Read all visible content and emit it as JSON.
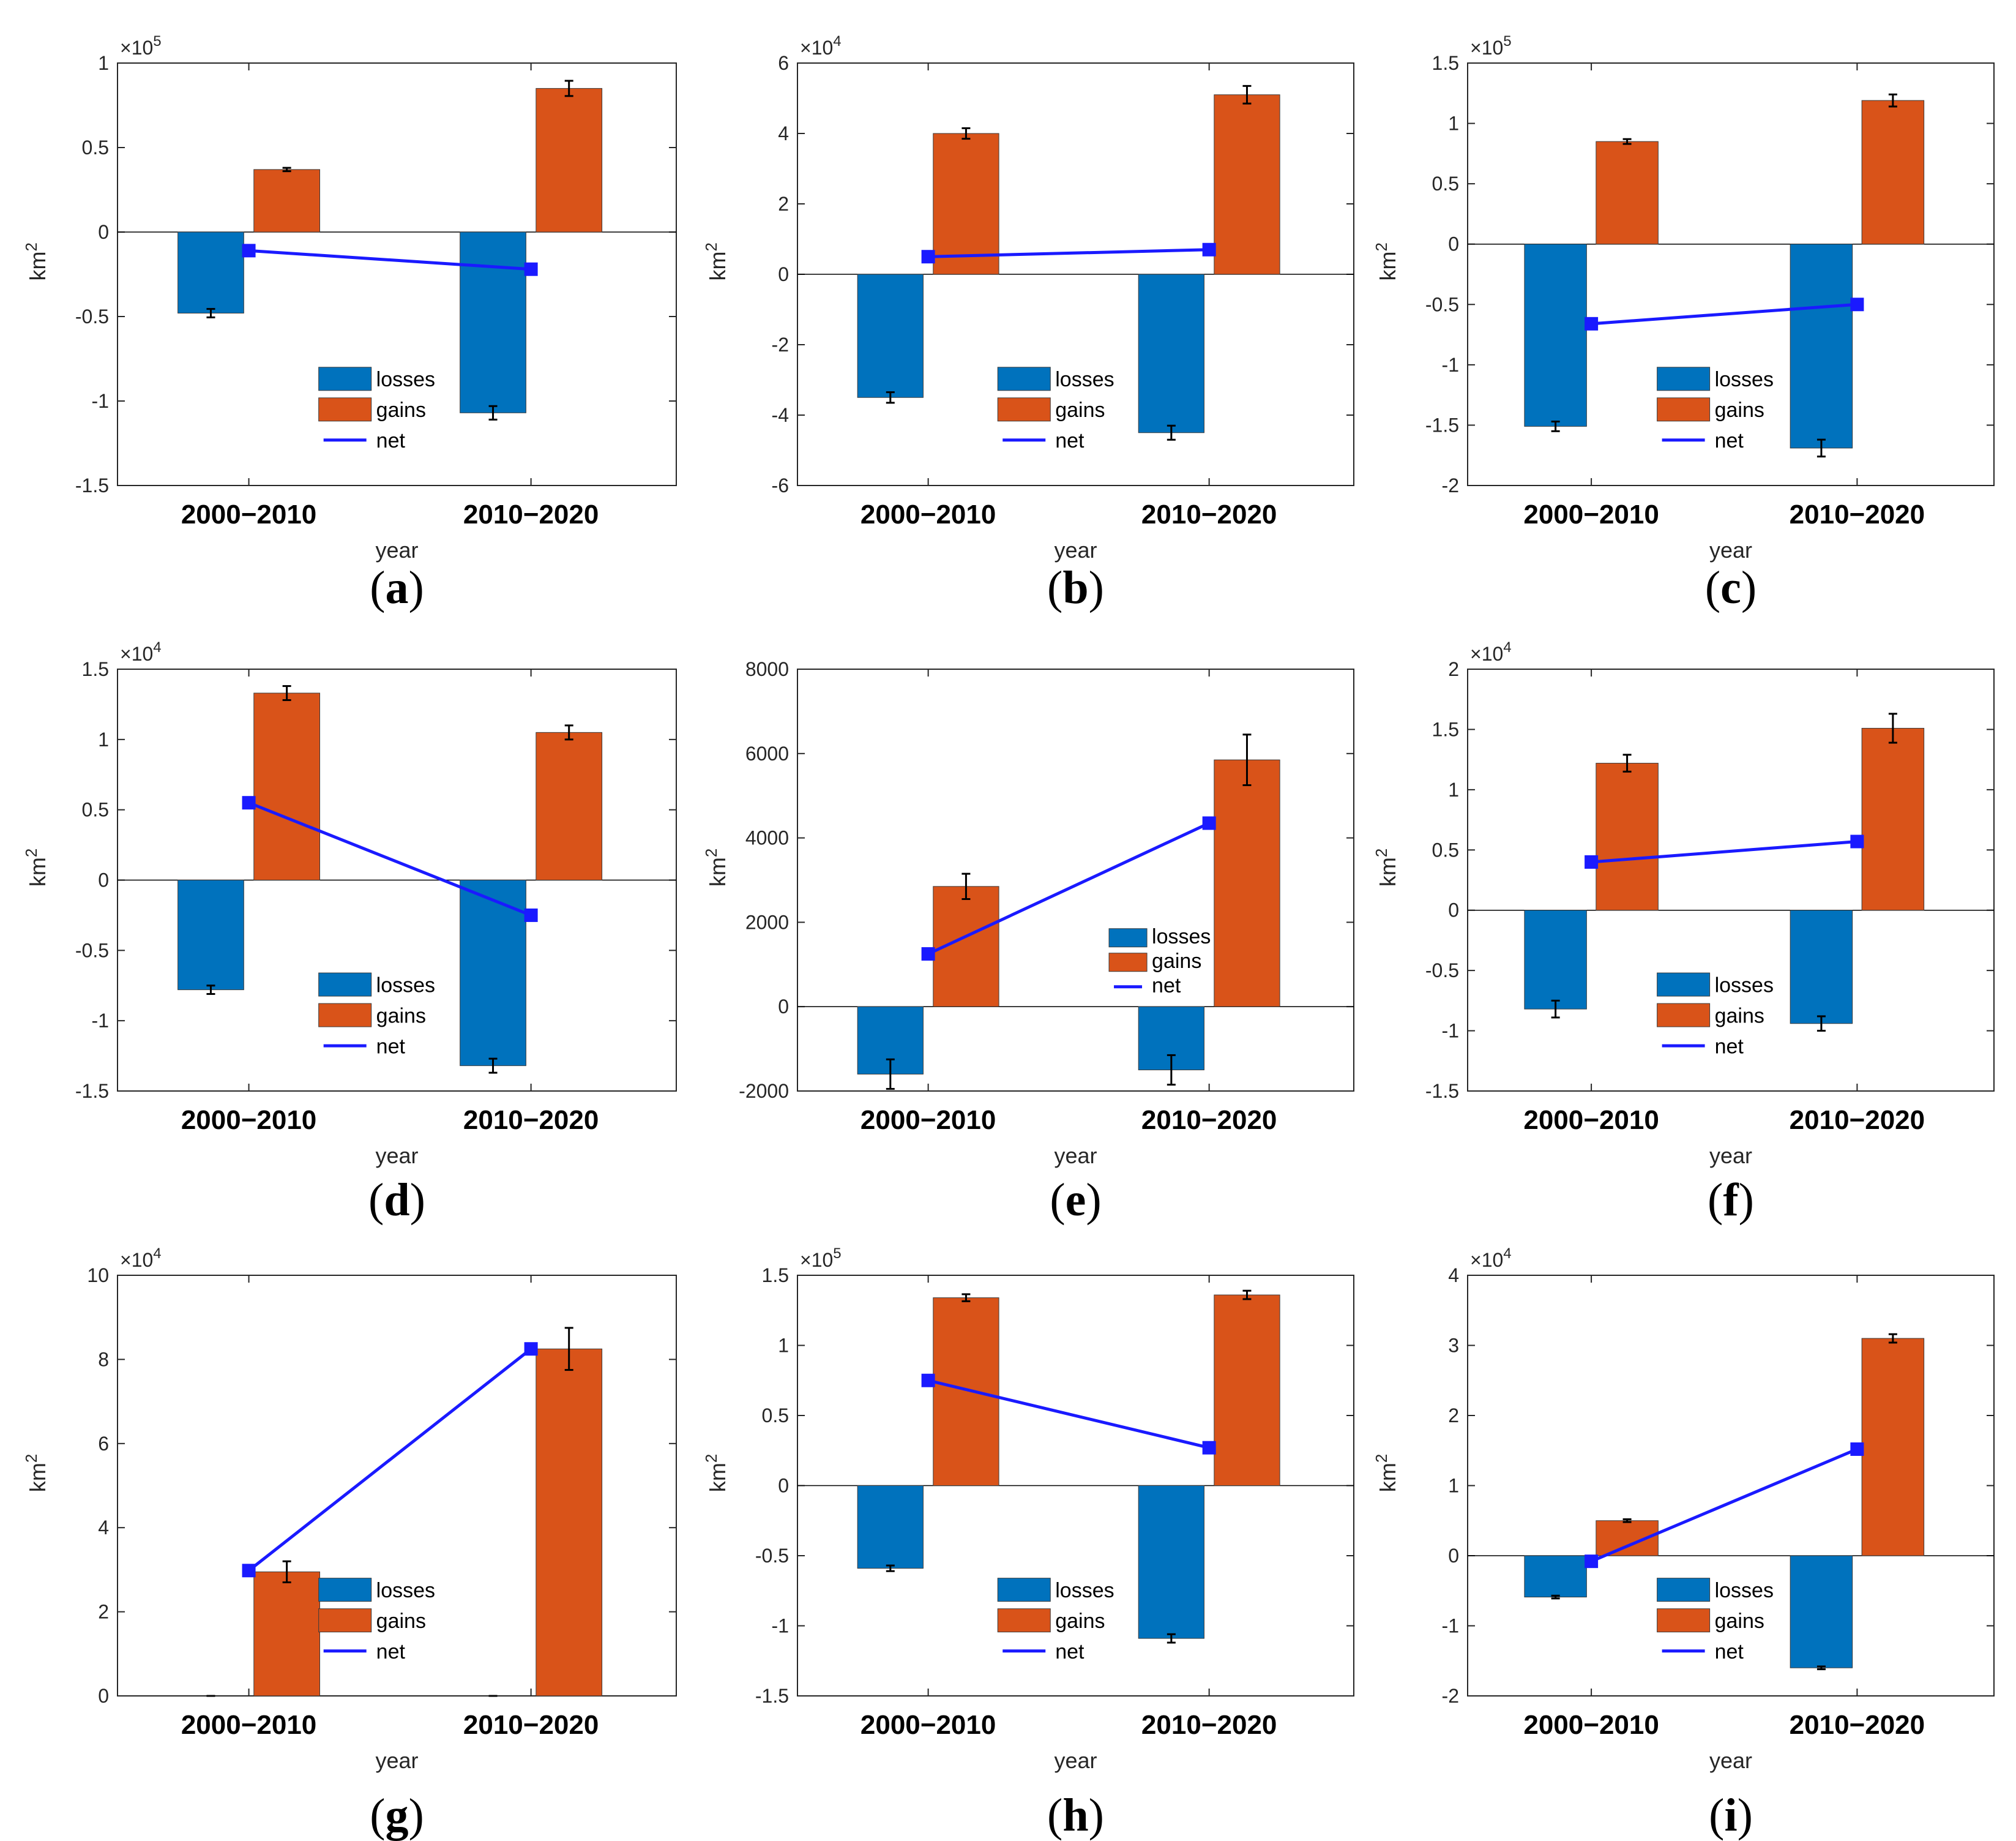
{
  "figure": {
    "xlabel": "year",
    "ylabel_base": "km",
    "ylabel_sup": "2"
  },
  "colors": {
    "losses": "#0072BD",
    "gains": "#D95319",
    "net": "#1a1aff",
    "axis": "#262626"
  },
  "chart_data": [
    {
      "type": "bar",
      "panel": "a",
      "title": "",
      "categories": [
        "2000−2010",
        "2010−2020"
      ],
      "xlabel": "year",
      "ylabel": "km2",
      "multiplier": "10",
      "multiplier_exp": "5",
      "scale": 100000,
      "ylim": [
        -150000,
        100000
      ],
      "yticks": [
        -150000,
        -100000,
        -50000,
        0,
        50000,
        100000
      ],
      "ytick_labels": [
        "-1.5",
        "-1",
        "-0.5",
        "0",
        "0.5",
        "1"
      ],
      "legend_position": "lower-middle",
      "series": [
        {
          "name": "losses",
          "type": "bar",
          "values": [
            -48000,
            -107000
          ],
          "errors": [
            2500,
            4000
          ]
        },
        {
          "name": "gains",
          "type": "bar",
          "values": [
            37000,
            85000
          ],
          "errors": [
            1000,
            4500
          ]
        },
        {
          "name": "net",
          "type": "line",
          "values": [
            -11000,
            -22000
          ]
        }
      ]
    },
    {
      "type": "bar",
      "panel": "b",
      "title": "",
      "categories": [
        "2000−2010",
        "2010−2020"
      ],
      "xlabel": "year",
      "ylabel": "km2",
      "multiplier": "10",
      "multiplier_exp": "4",
      "scale": 10000,
      "ylim": [
        -60000,
        60000
      ],
      "yticks": [
        -60000,
        -40000,
        -20000,
        0,
        20000,
        40000,
        60000
      ],
      "ytick_labels": [
        "-6",
        "-4",
        "-2",
        "0",
        "2",
        "4",
        "6"
      ],
      "legend_position": "lower-middle",
      "series": [
        {
          "name": "losses",
          "type": "bar",
          "values": [
            -35000,
            -45000
          ],
          "errors": [
            1500,
            2000
          ]
        },
        {
          "name": "gains",
          "type": "bar",
          "values": [
            40000,
            51000
          ],
          "errors": [
            1500,
            2500
          ]
        },
        {
          "name": "net",
          "type": "line",
          "values": [
            5000,
            7000
          ]
        }
      ]
    },
    {
      "type": "bar",
      "panel": "c",
      "title": "",
      "categories": [
        "2000−2010",
        "2010−2020"
      ],
      "xlabel": "year",
      "ylabel": "km2",
      "multiplier": "10",
      "multiplier_exp": "5",
      "scale": 100000,
      "ylim": [
        -200000,
        150000
      ],
      "yticks": [
        -200000,
        -150000,
        -100000,
        -50000,
        0,
        50000,
        100000,
        150000
      ],
      "ytick_labels": [
        "-2",
        "-1.5",
        "-1",
        "-0.5",
        "0",
        "0.5",
        "1",
        "1.5"
      ],
      "legend_position": "lower-middle",
      "series": [
        {
          "name": "losses",
          "type": "bar",
          "values": [
            -151000,
            -169000
          ],
          "errors": [
            4000,
            7000
          ]
        },
        {
          "name": "gains",
          "type": "bar",
          "values": [
            85000,
            119000
          ],
          "errors": [
            2000,
            5000
          ]
        },
        {
          "name": "net",
          "type": "line",
          "values": [
            -66000,
            -50000
          ]
        }
      ]
    },
    {
      "type": "bar",
      "panel": "d",
      "title": "",
      "categories": [
        "2000−2010",
        "2010−2020"
      ],
      "xlabel": "year",
      "ylabel": "km2",
      "multiplier": "10",
      "multiplier_exp": "4",
      "scale": 10000,
      "ylim": [
        -15000,
        15000
      ],
      "yticks": [
        -15000,
        -10000,
        -5000,
        0,
        5000,
        10000,
        15000
      ],
      "ytick_labels": [
        "-1.5",
        "-1",
        "-0.5",
        "0",
        "0.5",
        "1",
        "1.5"
      ],
      "legend_position": "lower-middle",
      "series": [
        {
          "name": "losses",
          "type": "bar",
          "values": [
            -7800,
            -13200
          ],
          "errors": [
            300,
            500
          ]
        },
        {
          "name": "gains",
          "type": "bar",
          "values": [
            13300,
            10500
          ],
          "errors": [
            500,
            500
          ]
        },
        {
          "name": "net",
          "type": "line",
          "values": [
            5500,
            -2500
          ]
        }
      ]
    },
    {
      "type": "bar",
      "panel": "e",
      "title": "",
      "categories": [
        "2000−2010",
        "2010−2020"
      ],
      "xlabel": "year",
      "ylabel": "km2",
      "multiplier": "",
      "multiplier_exp": "",
      "scale": 1,
      "ylim": [
        -2000,
        8000
      ],
      "yticks": [
        -2000,
        0,
        2000,
        4000,
        6000,
        8000
      ],
      "ytick_labels": [
        "-2000",
        "0",
        "2000",
        "4000",
        "6000",
        "8000"
      ],
      "legend_position": "center-right",
      "series": [
        {
          "name": "losses",
          "type": "bar",
          "values": [
            -1600,
            -1500
          ],
          "errors": [
            350,
            350
          ]
        },
        {
          "name": "gains",
          "type": "bar",
          "values": [
            2850,
            5850
          ],
          "errors": [
            300,
            600
          ]
        },
        {
          "name": "net",
          "type": "line",
          "values": [
            1250,
            4350
          ]
        }
      ]
    },
    {
      "type": "bar",
      "panel": "f",
      "title": "",
      "categories": [
        "2000−2010",
        "2010−2020"
      ],
      "xlabel": "year",
      "ylabel": "km2",
      "multiplier": "10",
      "multiplier_exp": "4",
      "scale": 10000,
      "ylim": [
        -15000,
        20000
      ],
      "yticks": [
        -15000,
        -10000,
        -5000,
        0,
        5000,
        10000,
        15000,
        20000
      ],
      "ytick_labels": [
        "-1.5",
        "-1",
        "-0.5",
        "0",
        "0.5",
        "1",
        "1.5",
        "2"
      ],
      "legend_position": "lower-middle",
      "series": [
        {
          "name": "losses",
          "type": "bar",
          "values": [
            -8200,
            -9400
          ],
          "errors": [
            700,
            600
          ]
        },
        {
          "name": "gains",
          "type": "bar",
          "values": [
            12200,
            15100
          ],
          "errors": [
            700,
            1200
          ]
        },
        {
          "name": "net",
          "type": "line",
          "values": [
            4000,
            5700
          ]
        }
      ]
    },
    {
      "type": "bar",
      "panel": "g",
      "title": "",
      "categories": [
        "2000−2010",
        "2010−2020"
      ],
      "xlabel": "year",
      "ylabel": "km2",
      "multiplier": "10",
      "multiplier_exp": "4",
      "scale": 10000,
      "ylim": [
        0,
        100000
      ],
      "yticks": [
        0,
        20000,
        40000,
        60000,
        80000,
        100000
      ],
      "ytick_labels": [
        "0",
        "2",
        "4",
        "6",
        "8",
        "10"
      ],
      "legend_position": "lower-middle",
      "series": [
        {
          "name": "losses",
          "type": "bar",
          "values": [
            0,
            0
          ],
          "errors": [
            0,
            0
          ]
        },
        {
          "name": "gains",
          "type": "bar",
          "values": [
            29500,
            82500
          ],
          "errors": [
            2500,
            5000
          ]
        },
        {
          "name": "net",
          "type": "line",
          "values": [
            29800,
            82500
          ]
        }
      ]
    },
    {
      "type": "bar",
      "panel": "h",
      "title": "",
      "categories": [
        "2000−2010",
        "2010−2020"
      ],
      "xlabel": "year",
      "ylabel": "km2",
      "multiplier": "10",
      "multiplier_exp": "5",
      "scale": 100000,
      "ylim": [
        -150000,
        150000
      ],
      "yticks": [
        -150000,
        -100000,
        -50000,
        0,
        50000,
        100000,
        150000
      ],
      "ytick_labels": [
        "-1.5",
        "-1",
        "-0.5",
        "0",
        "0.5",
        "1",
        "1.5"
      ],
      "legend_position": "lower-middle",
      "series": [
        {
          "name": "losses",
          "type": "bar",
          "values": [
            -59000,
            -109000
          ],
          "errors": [
            2000,
            3000
          ]
        },
        {
          "name": "gains",
          "type": "bar",
          "values": [
            134000,
            136000
          ],
          "errors": [
            2500,
            3000
          ]
        },
        {
          "name": "net",
          "type": "line",
          "values": [
            75000,
            27000
          ]
        }
      ]
    },
    {
      "type": "bar",
      "panel": "i",
      "title": "",
      "categories": [
        "2000−2010",
        "2010−2020"
      ],
      "xlabel": "year",
      "ylabel": "km2",
      "multiplier": "10",
      "multiplier_exp": "4",
      "scale": 10000,
      "ylim": [
        -20000,
        40000
      ],
      "yticks": [
        -20000,
        -10000,
        0,
        10000,
        20000,
        30000,
        40000
      ],
      "ytick_labels": [
        "-2",
        "-1",
        "0",
        "1",
        "2",
        "3",
        "4"
      ],
      "legend_position": "lower-middle",
      "series": [
        {
          "name": "losses",
          "type": "bar",
          "values": [
            -5900,
            -16000
          ],
          "errors": [
            200,
            200
          ]
        },
        {
          "name": "gains",
          "type": "bar",
          "values": [
            5000,
            31000
          ],
          "errors": [
            200,
            600
          ]
        },
        {
          "name": "net",
          "type": "line",
          "values": [
            -800,
            15200
          ]
        }
      ]
    }
  ]
}
